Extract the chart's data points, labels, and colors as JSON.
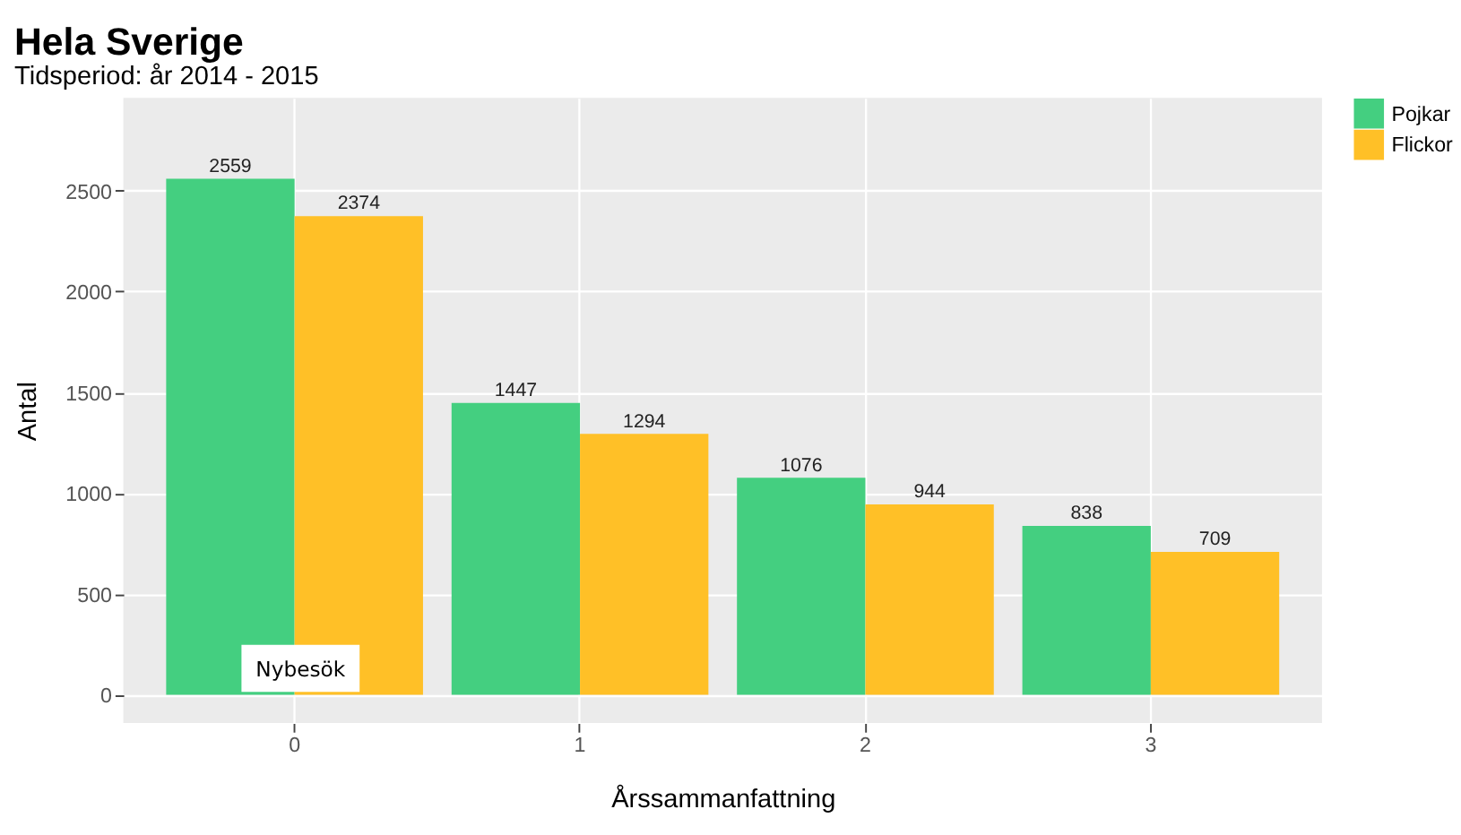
{
  "chart_data": {
    "type": "bar",
    "title": "Hela Sverige",
    "subtitle": "Tidsperiod: år 2014 - 2015",
    "xlabel": "Årssammanfattning",
    "ylabel": "Antal",
    "categories": [
      "0",
      "1",
      "2",
      "3"
    ],
    "series": [
      {
        "name": "Pojkar",
        "color": "#44cf80",
        "values": [
          2559,
          1447,
          1076,
          838
        ]
      },
      {
        "name": "Flickor",
        "color": "#ffc027",
        "values": [
          2374,
          1294,
          944,
          709
        ]
      }
    ],
    "ylim": [
      -140,
      2960
    ],
    "yticks": [
      0,
      500,
      1000,
      1500,
      2000,
      2500
    ],
    "data_labels": true,
    "grid": true,
    "legend": "right",
    "annotations": [
      "Nybesök"
    ]
  }
}
